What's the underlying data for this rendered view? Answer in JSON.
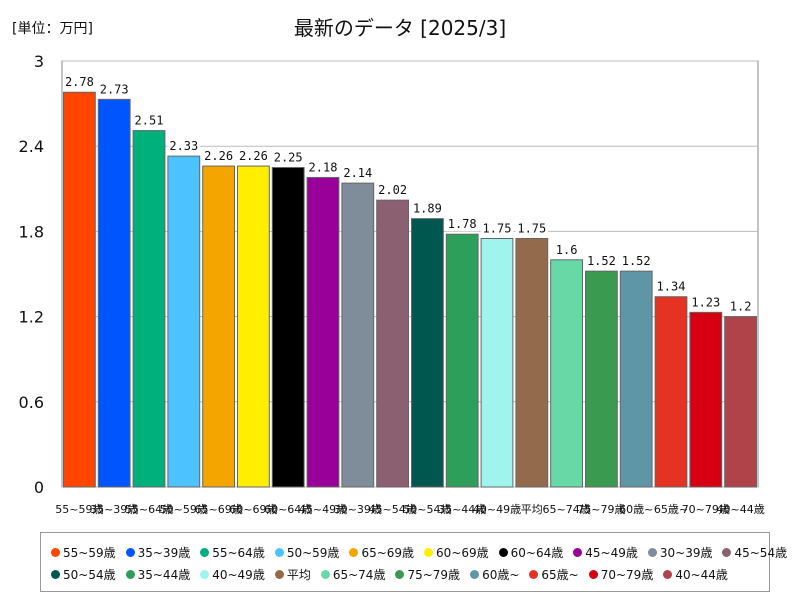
{
  "unit_label": "[単位：万円]",
  "chart_data": {
    "type": "bar",
    "title": "最新のデータ [2025/3]",
    "xlabel": "",
    "ylabel": "",
    "ylim": [
      0,
      3
    ],
    "yticks": [
      "0",
      "0.6",
      "1.2",
      "1.8",
      "2.4",
      "3"
    ],
    "grid": true,
    "categories": [
      "55~59歳",
      "35~39歳",
      "55~64歳",
      "50~59歳",
      "65~69歳",
      "60~69歳",
      "60~64歳",
      "45~49歳",
      "30~39歳",
      "45~54歳",
      "50~54歳",
      "35~44歳",
      "40~49歳",
      "平均",
      "65~74歳",
      "75~79歳",
      "60歳~",
      "65歳~",
      "70~79歳",
      "40~44歳"
    ],
    "values": [
      2.78,
      2.73,
      2.51,
      2.33,
      2.26,
      2.26,
      2.25,
      2.18,
      2.14,
      2.02,
      1.89,
      1.78,
      1.75,
      1.75,
      1.6,
      1.52,
      1.52,
      1.34,
      1.23,
      1.2
    ],
    "value_labels": [
      "2.78",
      "2.73",
      "2.51",
      "2.33",
      "2.26",
      "2.26",
      "2.25",
      "2.18",
      "2.14",
      "2.02",
      "1.89",
      "1.78",
      "1.75",
      "1.75",
      "1.6",
      "1.52",
      "1.52",
      "1.34",
      "1.23",
      "1.2"
    ],
    "tick_labels": [
      "55~59歳",
      "35~39歳",
      "55~64歳",
      "50~59歳",
      "65~69歳",
      "60~69歳",
      "60~64歳",
      "45~49歳",
      "30~39歳",
      "45~54歳",
      "50~54歳",
      "35~44歳",
      "40~49歳",
      "平均",
      "65~74歳",
      "75~79歳",
      "60歳~",
      "65歳~",
      "70~79歳",
      "40~44歳"
    ],
    "colors": [
      "#ff4500",
      "#0055ff",
      "#00b07a",
      "#4cc3ff",
      "#f5a500",
      "#ffee00",
      "#000000",
      "#99009a",
      "#7f8c99",
      "#8b6070",
      "#00574f",
      "#2e9e5b",
      "#9ff5ee",
      "#946a4c",
      "#66d9a7",
      "#3a9a4f",
      "#5f96a5",
      "#e43322",
      "#d70012",
      "#b04249"
    ],
    "legend_position": "bottom"
  }
}
